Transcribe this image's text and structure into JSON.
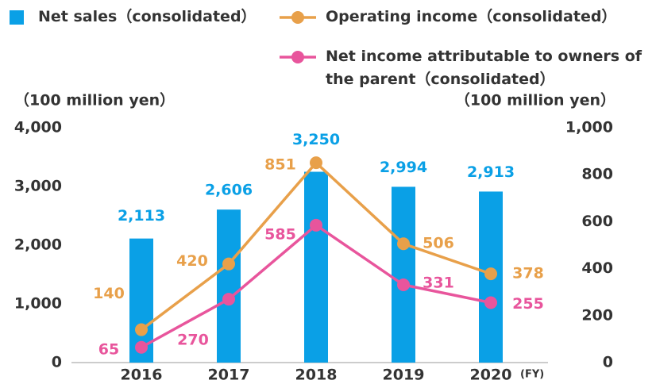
{
  "chart_data": {
    "type": "bar_line",
    "categories": [
      "2016",
      "2017",
      "2018",
      "2019",
      "2020"
    ],
    "x_unit_label": "(FY)",
    "ylabel": "（100 million yen）",
    "y2label": "（100 million yen）",
    "ylim": [
      0,
      4000
    ],
    "yticks": [
      0,
      {
        "value": 1000,
        "label": "1,000"
      },
      {
        "value": 2000,
        "label": "2,000"
      },
      {
        "value": 3000,
        "label": "3,000"
      },
      {
        "value": 4000,
        "label": "4,000"
      }
    ],
    "y2lim": [
      0,
      1000
    ],
    "y2ticks": [
      0,
      200,
      400,
      600,
      800,
      {
        "value": 1000,
        "label": "1,000"
      }
    ],
    "series": [
      {
        "name": "Net sales（consolidated）",
        "type": "bar",
        "color": "#0aa0e6",
        "values": [
          2113,
          2606,
          3250,
          2994,
          2913
        ],
        "value_labels": [
          "2,113",
          "2,606",
          "3,250",
          "2,994",
          "2,913"
        ]
      },
      {
        "name": "Operating income（consolidated）",
        "type": "line",
        "axis": "y2",
        "color": "#e8a04a",
        "values": [
          140,
          420,
          851,
          506,
          378
        ]
      },
      {
        "name": "Net income attributable to owners of the parent（consolidated）",
        "type": "line",
        "axis": "y2",
        "color": "#e8559c",
        "values": [
          65,
          270,
          585,
          331,
          255
        ]
      }
    ]
  }
}
